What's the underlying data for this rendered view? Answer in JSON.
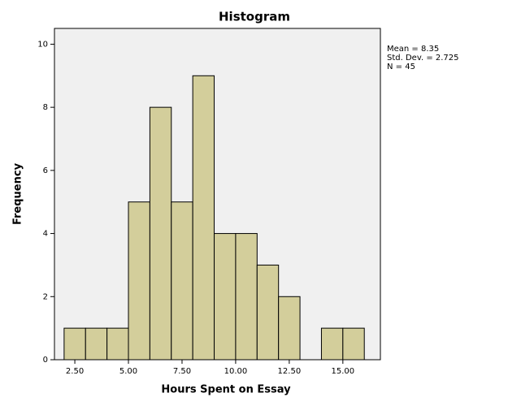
{
  "chart_data": {
    "type": "histogram",
    "title": "Histogram",
    "x_label": "Hours Spent on Essay",
    "y_label": "Frequency",
    "bins": [
      2,
      3,
      4,
      5,
      6,
      7,
      8,
      9,
      10,
      11,
      12,
      13,
      14,
      15,
      16
    ],
    "values": [
      1,
      1,
      1,
      5,
      8,
      5,
      9,
      4,
      4,
      3,
      2,
      0,
      1,
      1
    ],
    "color": "#d3ce9b",
    "xlim": [
      1.55,
      16.75
    ],
    "xticks": [
      {
        "value": 2.5,
        "label": "2.50"
      },
      {
        "value": 5,
        "label": "5.00"
      },
      {
        "value": 7.5,
        "label": "7.50"
      },
      {
        "value": 10,
        "label": "10.00"
      },
      {
        "value": 12.5,
        "label": "12.50"
      },
      {
        "value": 15,
        "label": "15.00"
      }
    ],
    "ylim": [
      0,
      10.5
    ],
    "yticks": [
      0,
      2,
      4,
      6,
      8,
      10
    ],
    "annotations": [
      "Mean = 8.35",
      "Std. Dev. = 2.725",
      "N = 45"
    ]
  }
}
